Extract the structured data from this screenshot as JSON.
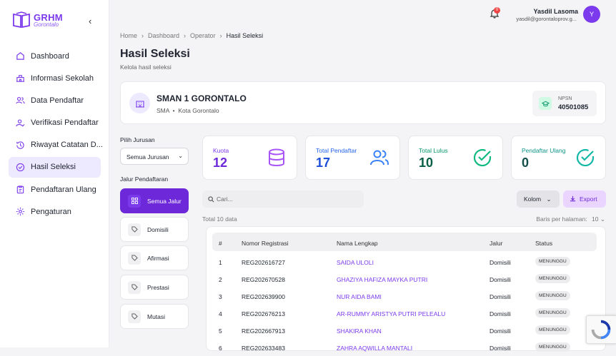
{
  "logo": {
    "title": "GRHM",
    "subtitle": "Gorontalo"
  },
  "sidebar": {
    "collapse_icon": "‹",
    "items": [
      {
        "label": "Dashboard",
        "icon": "home-icon"
      },
      {
        "label": "Informasi Sekolah",
        "icon": "school-icon"
      },
      {
        "label": "Data Pendaftar",
        "icon": "users-icon"
      },
      {
        "label": "Verifikasi Pendaftar",
        "icon": "user-check-icon"
      },
      {
        "label": "Riwayat Catatan D...",
        "icon": "history-icon"
      },
      {
        "label": "Hasil Seleksi",
        "icon": "check-circle-icon",
        "active": true
      },
      {
        "label": "Pendaftaran Ulang",
        "icon": "clipboard-icon"
      },
      {
        "label": "Pengaturan",
        "icon": "gear-icon"
      }
    ]
  },
  "topbar": {
    "notification_count": "0",
    "user_name": "Yasdil Lasoma",
    "user_email": "yasdil@gorontaloprov.g...",
    "avatar_initial": "Y"
  },
  "breadcrumb": [
    "Home",
    "Dashboard",
    "Operator",
    "Hasil Seleksi"
  ],
  "page": {
    "title": "Hasil Seleksi",
    "subtitle": "Kelola hasil seleksi"
  },
  "school": {
    "name": "SMAN 1 GORONTALO",
    "level": "SMA",
    "city": "Kota Gorontalo",
    "npsn_label": "NPSN",
    "npsn": "40501085"
  },
  "filters": {
    "jurusan_label": "Pilih Jurusan",
    "jurusan_value": "Semua Jurusan",
    "jalur_label": "Jalur Pendaftaran",
    "jalur": [
      "Semua Jalur",
      "Domisili",
      "Afirmasi",
      "Prestasi",
      "Mutasi"
    ]
  },
  "stats": [
    {
      "label": "Kuota",
      "value": "12",
      "color": "#7c3aed"
    },
    {
      "label": "Total Pendaftar",
      "value": "17",
      "color": "#2563eb"
    },
    {
      "label": "Total Lulus",
      "value": "10",
      "color": "#10b981"
    },
    {
      "label": "Pendaftar Ulang",
      "value": "0",
      "color": "#14b8a6"
    }
  ],
  "toolbar": {
    "search_placeholder": "Cari...",
    "kolom_label": "Kolom",
    "export_label": "Export",
    "total": "Total 10 data",
    "rows_per_page_label": "Baris per halaman:",
    "rows_per_page": "10"
  },
  "table": {
    "headers": [
      "#",
      "Nomor Registrasi",
      "Nama Lengkap",
      "Jalur",
      "Status"
    ],
    "rows": [
      [
        "1",
        "REG202616727",
        "SAIDA ULOLI",
        "Domisili",
        "MENUNGGU"
      ],
      [
        "2",
        "REG202670528",
        "GHAZIYA HAFIZA MAYKA PUTRI",
        "Domisili",
        "MENUNGGU"
      ],
      [
        "3",
        "REG202639900",
        "NUR AIDA BAMI",
        "Domisili",
        "MENUNGGU"
      ],
      [
        "4",
        "REG202676213",
        "AR-RUMMY ARISTYA PUTRI PELEALU",
        "Domisili",
        "MENUNGGU"
      ],
      [
        "5",
        "REG202667913",
        "SHAKIRA KHAN",
        "Domisili",
        "MENUNGGU"
      ],
      [
        "6",
        "REG202633483",
        "ZAHRA AQWILLA MANTALI",
        "Domisili",
        "MENUNGGU"
      ]
    ]
  }
}
